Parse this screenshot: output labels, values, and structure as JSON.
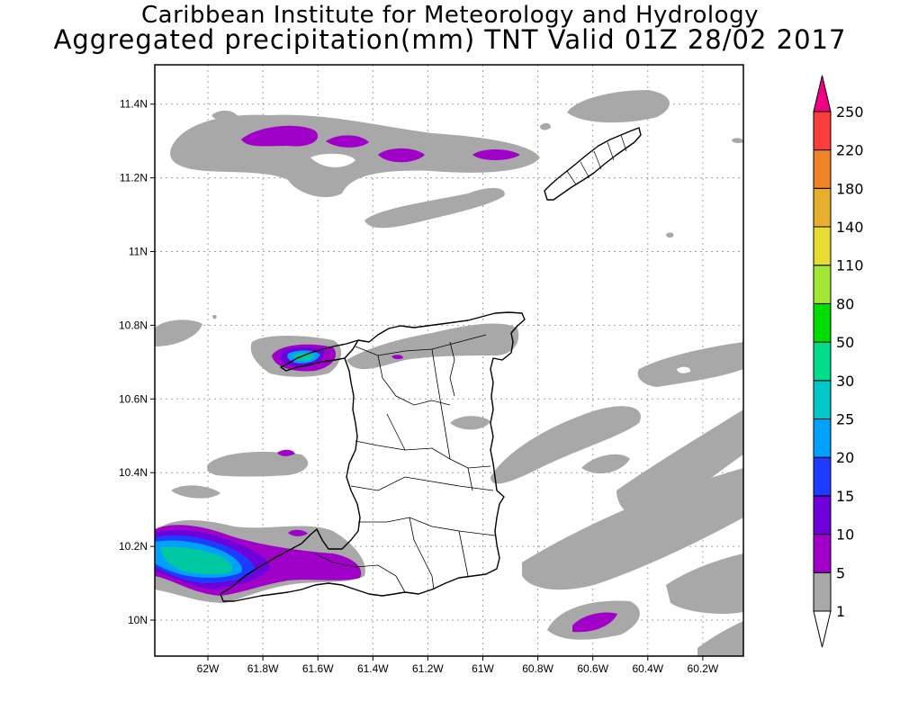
{
  "header": {
    "line1": "Caribbean Institute for Meteorology and Hydrology",
    "line2": "Aggregated precipitation(mm) TNT Valid 01Z 28/02 2017"
  },
  "axes": {
    "lon_ticks": [
      "62W",
      "61.8W",
      "61.6W",
      "61.4W",
      "61.2W",
      "61W",
      "60.8W",
      "60.6W",
      "60.4W",
      "60.2W"
    ],
    "lat_ticks": [
      "10N",
      "10.2N",
      "10.4N",
      "10.6N",
      "10.8N",
      "11N",
      "11.2N",
      "11.4N"
    ],
    "grid": true,
    "grid_style": "dotted"
  },
  "colorbar": {
    "units": "mm",
    "levels": [
      "1",
      "5",
      "10",
      "15",
      "20",
      "25",
      "30",
      "50",
      "80",
      "110",
      "140",
      "180",
      "220",
      "250"
    ],
    "colors": [
      "#a8a8a8",
      "#a000c8",
      "#6e00dc",
      "#1e3cff",
      "#00a0ff",
      "#00c8c8",
      "#00dc8c",
      "#00dc00",
      "#a0e632",
      "#e6dc32",
      "#e6af2d",
      "#f08228",
      "#fa3c3c",
      "#f00082"
    ],
    "below_color": "#ffffff",
    "above_color": "#f00082"
  },
  "colors": {
    "land_outline": "#000000",
    "frame": "#000000",
    "grid": "#a0a0a0"
  }
}
